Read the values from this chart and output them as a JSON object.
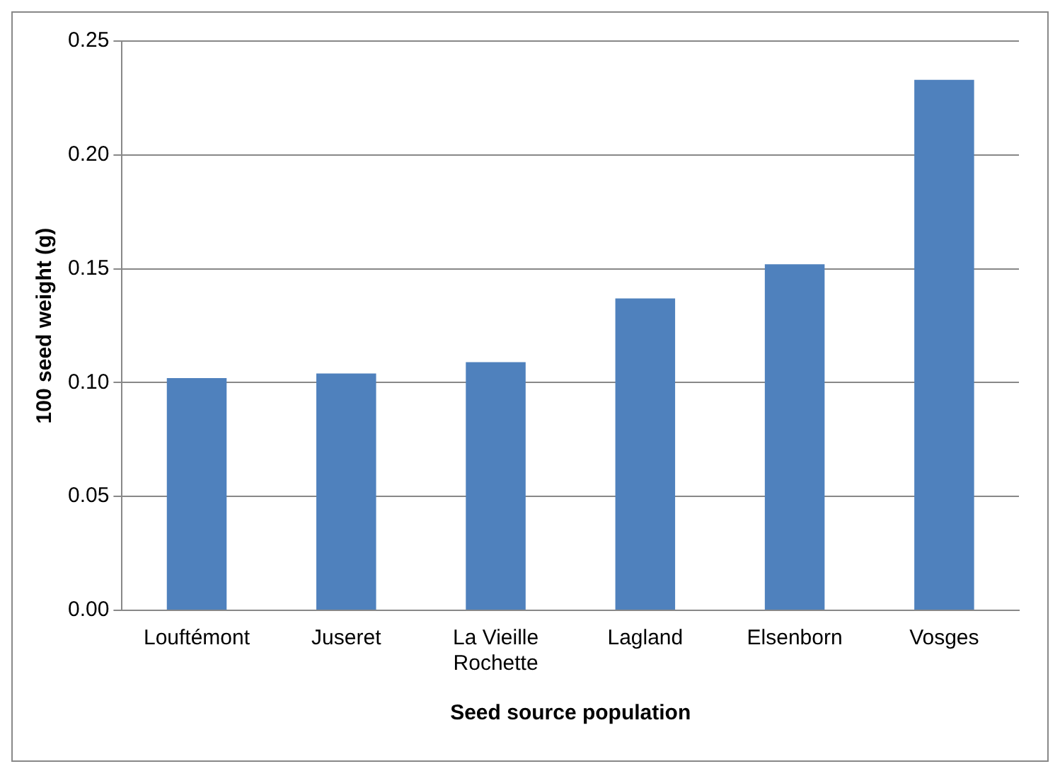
{
  "chart_data": {
    "type": "bar",
    "xlabel": "Seed source population",
    "ylabel": "100 seed weight (g)",
    "categories": [
      "Louftémont",
      "Juseret",
      "La Vieille Rochette",
      "Lagland",
      "Elsenborn",
      "Vosges"
    ],
    "values": [
      0.102,
      0.104,
      0.109,
      0.137,
      0.152,
      0.233
    ],
    "color": "#4f81bd",
    "ylim": [
      0,
      0.25
    ],
    "yticks": [
      {
        "value": 0,
        "label": "0.00"
      },
      {
        "value": 0.05,
        "label": "0.05"
      },
      {
        "value": 0.1,
        "label": "0.10"
      },
      {
        "value": 0.15,
        "label": "0.15"
      },
      {
        "value": 0.2,
        "label": "0.20"
      },
      {
        "value": 0.25,
        "label": "0.25"
      }
    ],
    "grid": "y",
    "legend": false
  }
}
